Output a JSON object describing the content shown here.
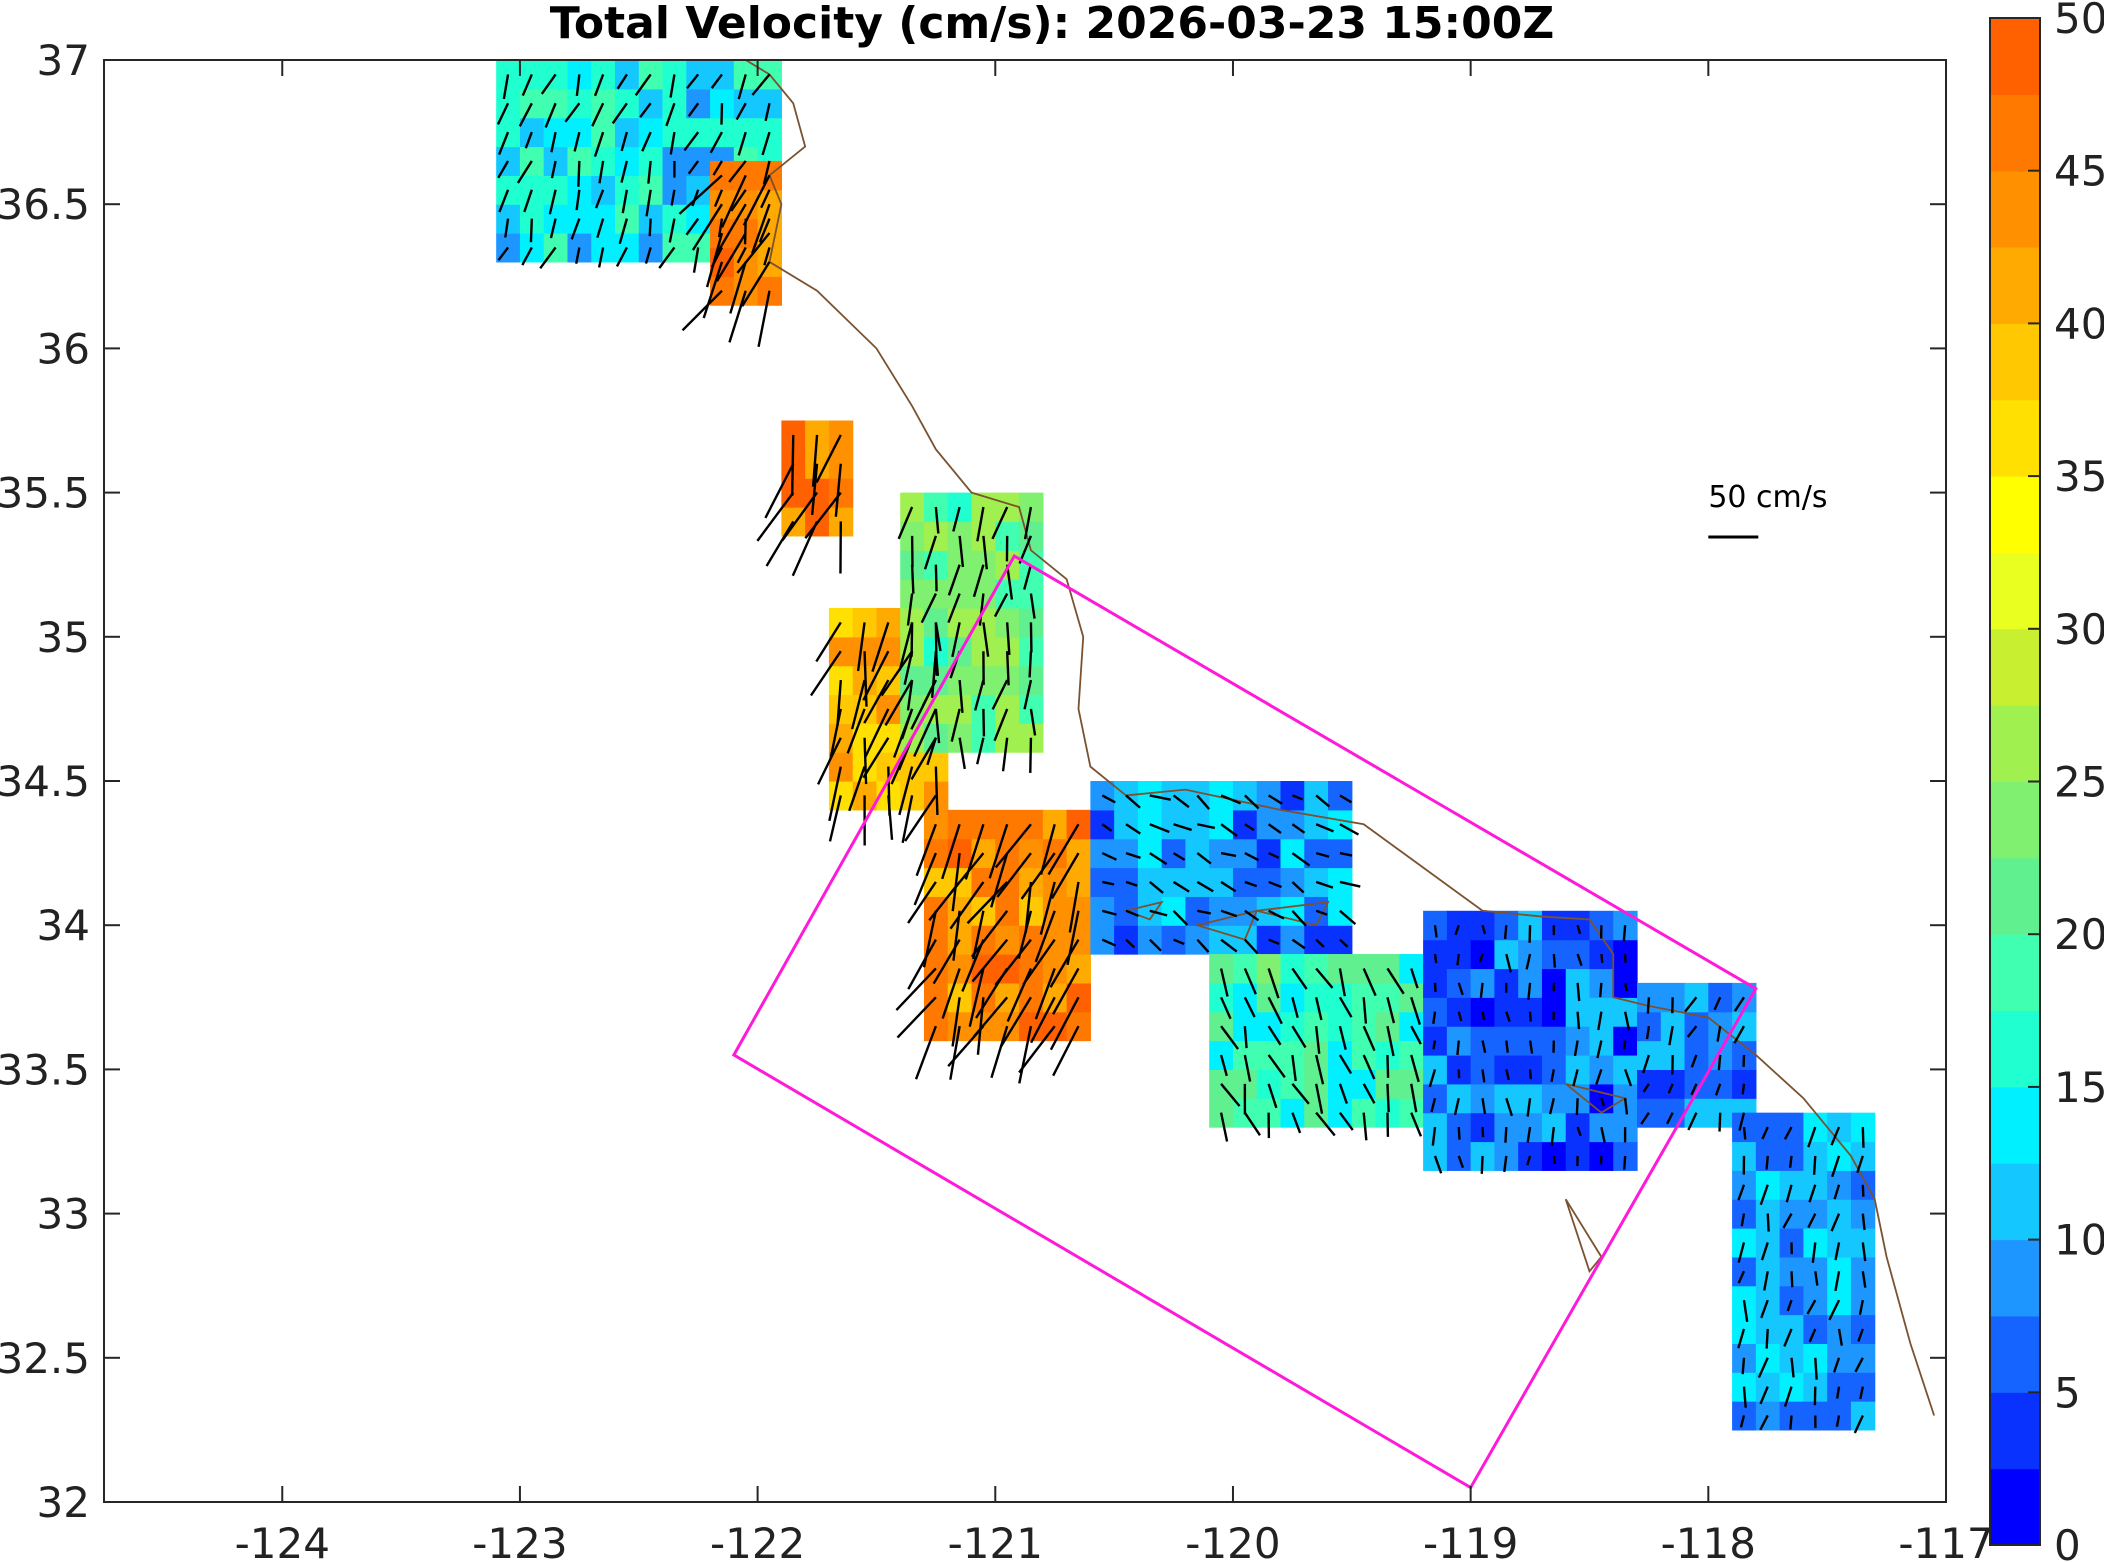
{
  "title": "Total Velocity (cm/s): 2026-03-23 15:00Z",
  "map": {
    "lon_range": [
      -124.75,
      -117.0
    ],
    "lat_range": [
      32.0,
      37.0
    ],
    "x_ticks": [
      -124,
      -123,
      -122,
      -121,
      -120,
      -119,
      -118,
      -117
    ],
    "x_tick_labels": [
      "-124",
      "-123",
      "-122",
      "-121",
      "-120",
      "-119",
      "-118",
      "-117"
    ],
    "y_ticks": [
      32,
      32.5,
      33,
      33.5,
      34,
      34.5,
      35,
      35.5,
      36,
      36.5,
      37
    ],
    "y_tick_labels": [
      "32",
      "32.5",
      "33",
      "33.5",
      "34",
      "34.5",
      "35",
      "35.5",
      "36",
      "36.5",
      "37"
    ],
    "coast_color": "#7a5230",
    "box_color": "#ff1ad9",
    "box_corners": [
      [
        -120.92,
        35.28
      ],
      [
        -117.8,
        33.78
      ],
      [
        -119.0,
        32.05
      ],
      [
        -122.1,
        33.55
      ]
    ],
    "scale_label": "50 cm/s",
    "scale_location": [
      -118.0,
      35.45
    ]
  },
  "colorbar": {
    "min": 0,
    "max": 50,
    "labels": [
      "0",
      "5",
      "10",
      "15",
      "20",
      "25",
      "30",
      "35",
      "40",
      "45",
      "50"
    ],
    "colors": [
      "#0000ff",
      "#0a32ff",
      "#1664ff",
      "#1e96ff",
      "#14c8ff",
      "#00f0ff",
      "#20ffd0",
      "#40ffb0",
      "#60f090",
      "#80f070",
      "#a0f050",
      "#c8f030",
      "#e8ff20",
      "#ffff00",
      "#ffe000",
      "#ffc800",
      "#ffaa00",
      "#ff9000",
      "#ff7800",
      "#ff6000"
    ]
  },
  "chart_data": {
    "type": "heatmap",
    "title": "Total Velocity (cm/s): 2026-03-23 15:00Z",
    "units": "cm/s",
    "regions": [
      {
        "lon": [
          -123.1,
          -121.9
        ],
        "lat": [
          36.3,
          36.95
        ],
        "speed": 14,
        "dir_deg": 200
      },
      {
        "lon": [
          -122.2,
          -121.95
        ],
        "lat": [
          36.15,
          36.6
        ],
        "speed": 44,
        "dir_deg": 210
      },
      {
        "lon": [
          -121.9,
          -121.6
        ],
        "lat": [
          35.35,
          35.75
        ],
        "speed": 46,
        "dir_deg": 200
      },
      {
        "lon": [
          -121.7,
          -121.25
        ],
        "lat": [
          34.4,
          35.1
        ],
        "speed": 40,
        "dir_deg": 195
      },
      {
        "lon": [
          -121.4,
          -120.8
        ],
        "lat": [
          34.6,
          35.5
        ],
        "speed": 22,
        "dir_deg": 190
      },
      {
        "lon": [
          -121.3,
          -120.6
        ],
        "lat": [
          33.6,
          34.4
        ],
        "speed": 44,
        "dir_deg": 205
      },
      {
        "lon": [
          -120.6,
          -119.5
        ],
        "lat": [
          33.9,
          34.45
        ],
        "speed": 9,
        "dir_deg": 120
      },
      {
        "lon": [
          -120.1,
          -119.2
        ],
        "lat": [
          33.3,
          33.9
        ],
        "speed": 18,
        "dir_deg": 160
      },
      {
        "lon": [
          -119.2,
          -118.3
        ],
        "lat": [
          33.15,
          34.05
        ],
        "speed": 7,
        "dir_deg": 180
      },
      {
        "lon": [
          -118.3,
          -117.8
        ],
        "lat": [
          33.3,
          33.8
        ],
        "speed": 8,
        "dir_deg": 200
      },
      {
        "lon": [
          -117.9,
          -117.3
        ],
        "lat": [
          32.25,
          33.35
        ],
        "speed": 10,
        "dir_deg": 190
      }
    ]
  }
}
